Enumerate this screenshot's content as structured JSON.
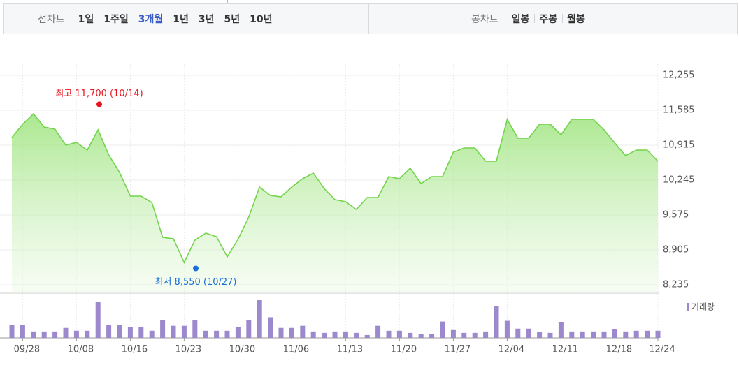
{
  "tabs": {
    "line": {
      "label": "선차트",
      "items": [
        {
          "text": "1일",
          "selected": false
        },
        {
          "text": "1주일",
          "selected": false
        },
        {
          "text": "3개월",
          "selected": true
        },
        {
          "text": "1년",
          "selected": false
        },
        {
          "text": "3년",
          "selected": false
        },
        {
          "text": "5년",
          "selected": false
        },
        {
          "text": "10년",
          "selected": false
        }
      ]
    },
    "candle": {
      "label": "봉차트",
      "items": [
        {
          "text": "일봉",
          "selected": false
        },
        {
          "text": "주봉",
          "selected": false
        },
        {
          "text": "월봉",
          "selected": false
        }
      ]
    }
  },
  "chart_data": {
    "type": "area",
    "categories": [
      null,
      "09/28",
      null,
      null,
      null,
      null,
      "10/08",
      null,
      null,
      null,
      null,
      "10/16",
      null,
      null,
      null,
      null,
      "10/23",
      null,
      null,
      null,
      null,
      "10/30",
      null,
      null,
      null,
      null,
      "11/06",
      null,
      null,
      null,
      null,
      "11/13",
      null,
      null,
      null,
      null,
      "11/20",
      null,
      null,
      null,
      null,
      "11/27",
      null,
      null,
      null,
      null,
      "12/04",
      null,
      null,
      null,
      null,
      "12/11",
      null,
      null,
      null,
      null,
      "12/18",
      null,
      null,
      null,
      "12/24"
    ],
    "series": [
      {
        "color": "#72d44a",
        "values": [
          11062,
          11317,
          11518,
          11263,
          11223,
          10915,
          10968,
          10821,
          11210,
          10727,
          10392,
          9937,
          9937,
          9816,
          9146,
          9119,
          8664,
          9093,
          9227,
          9160,
          8771,
          9106,
          9535,
          10111,
          9950,
          9923,
          10111,
          10272,
          10379,
          10084,
          9870,
          9830,
          9682,
          9910,
          9910,
          10312,
          10272,
          10473,
          10178,
          10312,
          10312,
          10781,
          10862,
          10862,
          10607,
          10607,
          11411,
          11049,
          11049,
          11317,
          11317,
          11116,
          11411,
          11411,
          11411,
          11210,
          10955,
          10714,
          10821,
          10821,
          10607
        ]
      },
      {
        "name": "거래량",
        "type": "bar",
        "color": "#9c88cc",
        "values": [
          18,
          18,
          9,
          9,
          9,
          14,
          10,
          10,
          50,
          18,
          18,
          15,
          15,
          10,
          25,
          17,
          17,
          25,
          10,
          10,
          10,
          15,
          25,
          53,
          29,
          14,
          14,
          17,
          9,
          7,
          9,
          9,
          7,
          4,
          17,
          10,
          10,
          7,
          5,
          5,
          23,
          11,
          7,
          7,
          9,
          45,
          24,
          13,
          13,
          8,
          7,
          22,
          9,
          9,
          9,
          9,
          12,
          9,
          10,
          10,
          10
        ]
      }
    ],
    "ylim": [
      8235,
      12255
    ],
    "yticks": [
      {
        "value": 12255,
        "label": "12,255"
      },
      {
        "value": 11585,
        "label": "11,585"
      },
      {
        "value": 10915,
        "label": "10,915"
      },
      {
        "value": 10245,
        "label": "10,245"
      },
      {
        "value": 9575,
        "label": "9,575"
      },
      {
        "value": 8905,
        "label": "8,905"
      },
      {
        "value": 8235,
        "label": "8,235"
      }
    ],
    "grid": true,
    "annotations": [
      {
        "text": "최고 11,700 (10/14)",
        "value": 11700,
        "color": "#e8141c"
      },
      {
        "text": "최저 8,550 (10/27)",
        "value": 8550,
        "color": "#1a6fd6"
      }
    ]
  }
}
